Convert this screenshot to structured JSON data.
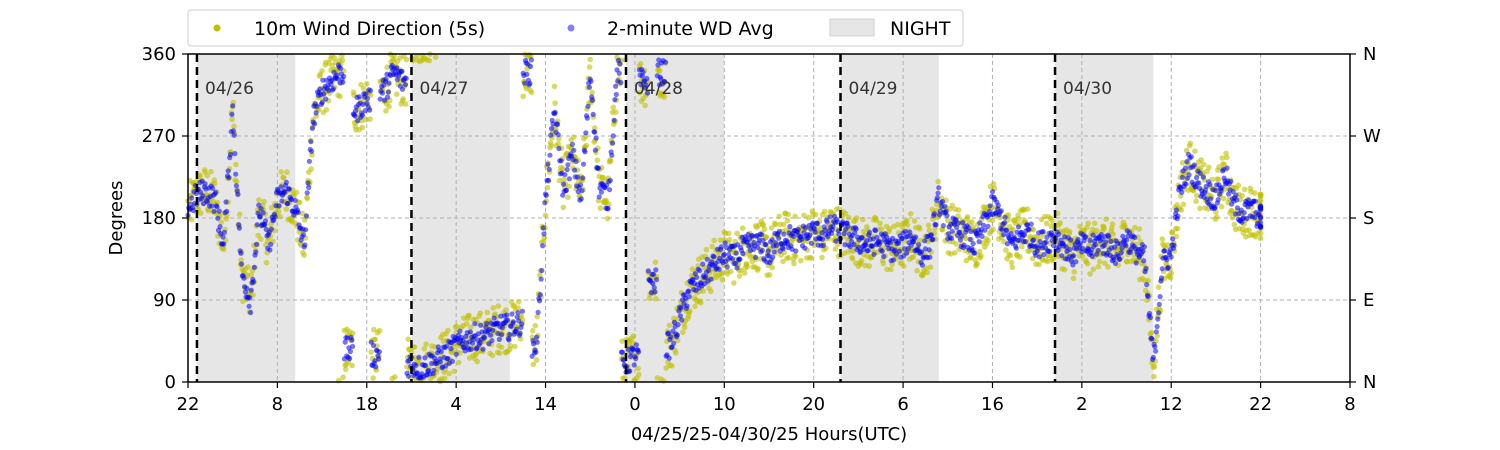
{
  "chart_data": {
    "type": "scatter",
    "xlabel": "04/25/25-04/30/25  Hours(UTC)",
    "ylabel": "Degrees",
    "xlim": [
      22,
      152
    ],
    "ylim": [
      0,
      360
    ],
    "x_ticks": [
      {
        "value": 22,
        "label": "22"
      },
      {
        "value": 32,
        "label": "8"
      },
      {
        "value": 42,
        "label": "18"
      },
      {
        "value": 52,
        "label": "4"
      },
      {
        "value": 62,
        "label": "14"
      },
      {
        "value": 72,
        "label": "0"
      },
      {
        "value": 82,
        "label": "10"
      },
      {
        "value": 92,
        "label": "20"
      },
      {
        "value": 102,
        "label": "6"
      },
      {
        "value": 112,
        "label": "16"
      },
      {
        "value": 122,
        "label": "2"
      },
      {
        "value": 132,
        "label": "12"
      },
      {
        "value": 142,
        "label": "22"
      },
      {
        "value": 152,
        "label": "8"
      }
    ],
    "y_ticks": [
      0,
      90,
      180,
      270,
      360
    ],
    "y_right_labels": [
      {
        "value": 0,
        "label": "N"
      },
      {
        "value": 90,
        "label": "E"
      },
      {
        "value": 180,
        "label": "S"
      },
      {
        "value": 270,
        "label": "W"
      },
      {
        "value": 360,
        "label": "N"
      }
    ],
    "grid": true,
    "legend_placement": "top",
    "night_periods": [
      [
        23,
        34
      ],
      [
        47,
        58
      ],
      [
        71,
        82
      ],
      [
        95,
        106
      ],
      [
        119,
        130
      ]
    ],
    "day_markers": [
      {
        "x": 23,
        "label": "04/26"
      },
      {
        "x": 47,
        "label": "04/27"
      },
      {
        "x": 71,
        "label": "04/28"
      },
      {
        "x": 95,
        "label": "04/29"
      },
      {
        "x": 119,
        "label": "04/30"
      }
    ],
    "series": [
      {
        "name": "10m Wind Direction (5s)",
        "color": "#bfbf00",
        "spread": 28,
        "points": [
          [
            22,
            190
          ],
          [
            23,
            205
          ],
          [
            24,
            210
          ],
          [
            25,
            200
          ],
          [
            26,
            150
          ],
          [
            27,
            300
          ],
          [
            28,
            120
          ],
          [
            29,
            90
          ],
          [
            30,
            190
          ],
          [
            31,
            150
          ],
          [
            32,
            200
          ],
          [
            33,
            210
          ],
          [
            34,
            190
          ],
          [
            35,
            150
          ],
          [
            36,
            290
          ],
          [
            37,
            320
          ],
          [
            38,
            330
          ],
          [
            39,
            340
          ],
          [
            40,
            35
          ],
          [
            41,
            300
          ],
          [
            42,
            310
          ],
          [
            43,
            30
          ],
          [
            44,
            320
          ],
          [
            45,
            340
          ],
          [
            46,
            330
          ],
          [
            47,
            20
          ],
          [
            48,
            15
          ],
          [
            49,
            20
          ],
          [
            50,
            25
          ],
          [
            51,
            30
          ],
          [
            52,
            40
          ],
          [
            53,
            45
          ],
          [
            54,
            50
          ],
          [
            55,
            50
          ],
          [
            56,
            55
          ],
          [
            57,
            60
          ],
          [
            58,
            60
          ],
          [
            59,
            65
          ],
          [
            60,
            340
          ],
          [
            61,
            40
          ],
          [
            62,
            200
          ],
          [
            63,
            300
          ],
          [
            64,
            210
          ],
          [
            65,
            250
          ],
          [
            66,
            200
          ],
          [
            67,
            340
          ],
          [
            68,
            215
          ],
          [
            69,
            200
          ],
          [
            70,
            340
          ],
          [
            71,
            20
          ],
          [
            72,
            30
          ],
          [
            73,
            330
          ],
          [
            74,
            110
          ],
          [
            75,
            340
          ],
          [
            76,
            40
          ],
          [
            77,
            70
          ],
          [
            78,
            100
          ],
          [
            79,
            110
          ],
          [
            80,
            120
          ],
          [
            81,
            130
          ],
          [
            82,
            140
          ],
          [
            83,
            135
          ],
          [
            84,
            145
          ],
          [
            85,
            150
          ],
          [
            86,
            150
          ],
          [
            87,
            140
          ],
          [
            88,
            155
          ],
          [
            89,
            160
          ],
          [
            90,
            155
          ],
          [
            91,
            160
          ],
          [
            92,
            165
          ],
          [
            93,
            160
          ],
          [
            94,
            170
          ],
          [
            95,
            165
          ],
          [
            96,
            160
          ],
          [
            97,
            155
          ],
          [
            98,
            150
          ],
          [
            99,
            155
          ],
          [
            100,
            150
          ],
          [
            101,
            145
          ],
          [
            102,
            150
          ],
          [
            103,
            160
          ],
          [
            104,
            140
          ],
          [
            105,
            150
          ],
          [
            106,
            200
          ],
          [
            107,
            170
          ],
          [
            108,
            165
          ],
          [
            109,
            160
          ],
          [
            110,
            150
          ],
          [
            111,
            170
          ],
          [
            112,
            195
          ],
          [
            113,
            180
          ],
          [
            114,
            150
          ],
          [
            115,
            160
          ],
          [
            116,
            165
          ],
          [
            117,
            150
          ],
          [
            118,
            155
          ],
          [
            119,
            160
          ],
          [
            120,
            150
          ],
          [
            121,
            140
          ],
          [
            122,
            150
          ],
          [
            123,
            145
          ],
          [
            124,
            155
          ],
          [
            125,
            150
          ],
          [
            126,
            140
          ],
          [
            127,
            160
          ],
          [
            128,
            145
          ],
          [
            129,
            135
          ],
          [
            130,
            20
          ],
          [
            131,
            130
          ],
          [
            132,
            140
          ],
          [
            133,
            210
          ],
          [
            134,
            240
          ],
          [
            135,
            220
          ],
          [
            136,
            210
          ],
          [
            137,
            200
          ],
          [
            138,
            230
          ],
          [
            139,
            195
          ],
          [
            140,
            185
          ],
          [
            141,
            190
          ],
          [
            142,
            180
          ]
        ]
      },
      {
        "name": "2-minute WD Avg",
        "color": "#0000ff",
        "spread": 14,
        "points": [
          [
            22,
            190
          ],
          [
            23,
            205
          ],
          [
            24,
            210
          ],
          [
            25,
            200
          ],
          [
            26,
            150
          ],
          [
            27,
            300
          ],
          [
            28,
            120
          ],
          [
            29,
            90
          ],
          [
            30,
            190
          ],
          [
            31,
            150
          ],
          [
            32,
            200
          ],
          [
            33,
            210
          ],
          [
            34,
            190
          ],
          [
            35,
            150
          ],
          [
            36,
            290
          ],
          [
            37,
            320
          ],
          [
            38,
            330
          ],
          [
            39,
            340
          ],
          [
            40,
            35
          ],
          [
            41,
            300
          ],
          [
            42,
            310
          ],
          [
            43,
            30
          ],
          [
            44,
            320
          ],
          [
            45,
            340
          ],
          [
            46,
            330
          ],
          [
            47,
            20
          ],
          [
            48,
            15
          ],
          [
            49,
            20
          ],
          [
            50,
            25
          ],
          [
            51,
            30
          ],
          [
            52,
            40
          ],
          [
            53,
            45
          ],
          [
            54,
            50
          ],
          [
            55,
            50
          ],
          [
            56,
            55
          ],
          [
            57,
            60
          ],
          [
            58,
            60
          ],
          [
            59,
            65
          ],
          [
            60,
            340
          ],
          [
            61,
            40
          ],
          [
            62,
            200
          ],
          [
            63,
            300
          ],
          [
            64,
            210
          ],
          [
            65,
            250
          ],
          [
            66,
            200
          ],
          [
            67,
            340
          ],
          [
            68,
            215
          ],
          [
            69,
            200
          ],
          [
            70,
            340
          ],
          [
            71,
            20
          ],
          [
            72,
            30
          ],
          [
            73,
            330
          ],
          [
            74,
            110
          ],
          [
            75,
            340
          ],
          [
            76,
            40
          ],
          [
            77,
            70
          ],
          [
            78,
            100
          ],
          [
            79,
            110
          ],
          [
            80,
            120
          ],
          [
            81,
            130
          ],
          [
            82,
            140
          ],
          [
            83,
            135
          ],
          [
            84,
            145
          ],
          [
            85,
            150
          ],
          [
            86,
            150
          ],
          [
            87,
            140
          ],
          [
            88,
            155
          ],
          [
            89,
            160
          ],
          [
            90,
            155
          ],
          [
            91,
            160
          ],
          [
            92,
            165
          ],
          [
            93,
            160
          ],
          [
            94,
            170
          ],
          [
            95,
            165
          ],
          [
            96,
            160
          ],
          [
            97,
            155
          ],
          [
            98,
            150
          ],
          [
            99,
            155
          ],
          [
            100,
            150
          ],
          [
            101,
            145
          ],
          [
            102,
            150
          ],
          [
            103,
            160
          ],
          [
            104,
            140
          ],
          [
            105,
            150
          ],
          [
            106,
            200
          ],
          [
            107,
            170
          ],
          [
            108,
            165
          ],
          [
            109,
            160
          ],
          [
            110,
            150
          ],
          [
            111,
            170
          ],
          [
            112,
            195
          ],
          [
            113,
            180
          ],
          [
            114,
            150
          ],
          [
            115,
            160
          ],
          [
            116,
            165
          ],
          [
            117,
            150
          ],
          [
            118,
            155
          ],
          [
            119,
            160
          ],
          [
            120,
            150
          ],
          [
            121,
            140
          ],
          [
            122,
            150
          ],
          [
            123,
            145
          ],
          [
            124,
            155
          ],
          [
            125,
            150
          ],
          [
            126,
            140
          ],
          [
            127,
            160
          ],
          [
            128,
            145
          ],
          [
            129,
            135
          ],
          [
            130,
            20
          ],
          [
            131,
            130
          ],
          [
            132,
            140
          ],
          [
            133,
            210
          ],
          [
            134,
            240
          ],
          [
            135,
            220
          ],
          [
            136,
            210
          ],
          [
            137,
            200
          ],
          [
            138,
            230
          ],
          [
            139,
            195
          ],
          [
            140,
            185
          ],
          [
            141,
            190
          ],
          [
            142,
            180
          ]
        ]
      }
    ],
    "legend": {
      "items": [
        {
          "label": "10m Wind Direction (5s)",
          "marker": "dot",
          "color": "#bfbf00"
        },
        {
          "label": "2-minute WD Avg",
          "marker": "dot",
          "color": "#8080ff"
        },
        {
          "label": "NIGHT",
          "marker": "box",
          "color": "#e6e6e6"
        }
      ]
    }
  }
}
